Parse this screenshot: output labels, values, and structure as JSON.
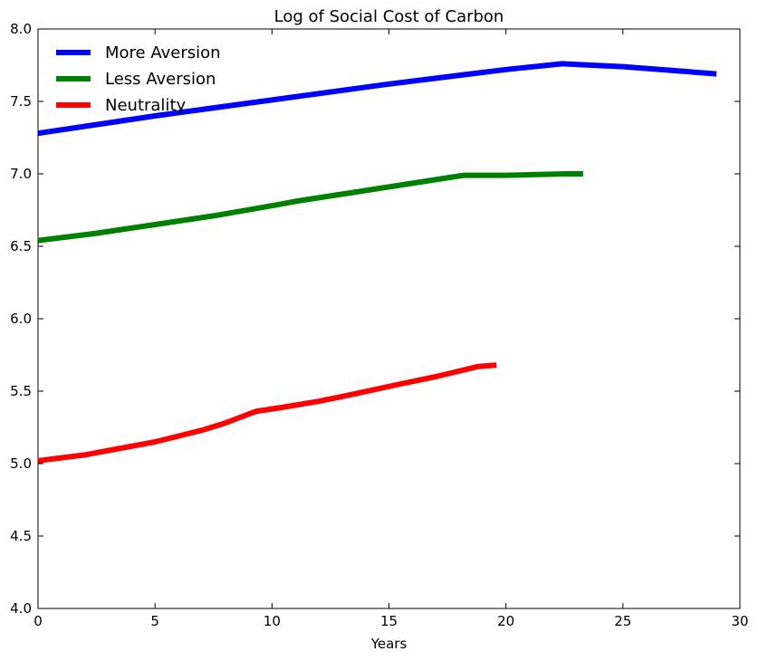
{
  "chart_data": {
    "type": "line",
    "title": "Log of Social Cost of Carbon",
    "xlabel": "Years",
    "ylabel": "",
    "xlim": [
      0,
      30
    ],
    "ylim": [
      4.0,
      8.0
    ],
    "xticks": [
      0,
      5,
      10,
      15,
      20,
      25,
      30
    ],
    "yticks": [
      4.0,
      4.5,
      5.0,
      5.5,
      6.0,
      6.5,
      7.0,
      7.5,
      8.0
    ],
    "xtick_labels": [
      "0",
      "5",
      "10",
      "15",
      "20",
      "25",
      "30"
    ],
    "ytick_labels": [
      "4.0",
      "4.5",
      "5.0",
      "5.5",
      "6.0",
      "6.5",
      "7.0",
      "7.5",
      "8.0"
    ],
    "grid": false,
    "legend_position": "top-left",
    "series": [
      {
        "name": "More Aversion",
        "color": "#0000ff",
        "x": [
          0,
          5,
          10,
          15,
          20,
          22.4,
          25,
          29.0
        ],
        "y": [
          7.28,
          7.4,
          7.51,
          7.62,
          7.72,
          7.76,
          7.74,
          7.69
        ]
      },
      {
        "name": "Less Aversion",
        "color": "#008000",
        "x": [
          0,
          2.5,
          5,
          7.5,
          10,
          11,
          13,
          15,
          17,
          18.2,
          20,
          22.5,
          23.3
        ],
        "y": [
          6.54,
          6.59,
          6.65,
          6.71,
          6.78,
          6.81,
          6.86,
          6.91,
          6.96,
          6.99,
          6.99,
          7.0,
          7.0
        ]
      },
      {
        "name": "Neutrality",
        "color": "#ff0000",
        "x": [
          0,
          1,
          2,
          3,
          4,
          5,
          6,
          7,
          8,
          9.3,
          10.5,
          12,
          13.5,
          15.5,
          17,
          18.8,
          19.6
        ],
        "y": [
          5.02,
          5.04,
          5.06,
          5.09,
          5.12,
          5.15,
          5.19,
          5.23,
          5.28,
          5.36,
          5.39,
          5.43,
          5.48,
          5.55,
          5.6,
          5.67,
          5.68
        ]
      }
    ]
  }
}
